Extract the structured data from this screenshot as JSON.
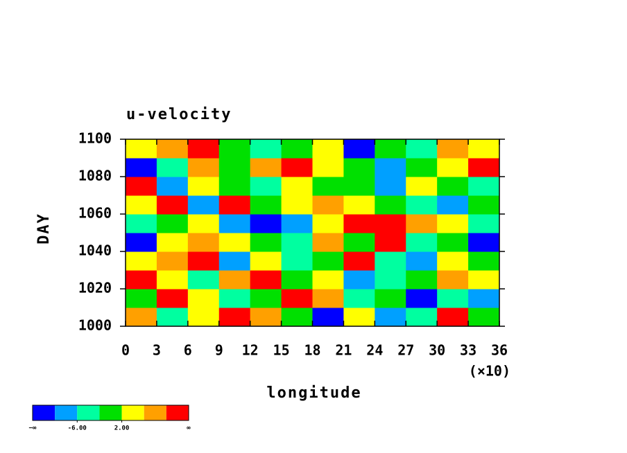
{
  "chart_data": {
    "type": "heatmap",
    "title": "u-velocity",
    "x_label": "longitude",
    "x_scale_label": "(×10)",
    "y_label": "DAY",
    "xlim": [
      0,
      36
    ],
    "xticks": [
      0,
      3,
      6,
      9,
      12,
      15,
      18,
      21,
      24,
      27,
      30,
      33,
      36
    ],
    "ylim": [
      1000,
      1100
    ],
    "yticks": [
      1000,
      1020,
      1040,
      1060,
      1080,
      1100
    ],
    "field": {
      "x_edges": [
        0,
        3,
        6,
        9,
        12,
        15,
        18,
        21,
        24,
        27,
        30,
        33,
        36
      ],
      "y_edges": [
        1000,
        1010,
        1020,
        1030,
        1040,
        1050,
        1060,
        1070,
        1080,
        1090,
        1100
      ],
      "values": [
        [
          8,
          -4,
          4,
          12,
          8,
          0,
          -12,
          4,
          -8,
          -4,
          12,
          0
        ],
        [
          0,
          12,
          4,
          -4,
          0,
          12,
          8,
          -4,
          0,
          -12,
          -4,
          -8
        ],
        [
          12,
          4,
          -4,
          8,
          12,
          0,
          4,
          -8,
          -4,
          0,
          8,
          4
        ],
        [
          4,
          8,
          12,
          -8,
          4,
          -4,
          0,
          12,
          -4,
          -8,
          4,
          0
        ],
        [
          -12,
          4,
          8,
          4,
          0,
          -4,
          8,
          0,
          12,
          -4,
          0,
          -12
        ],
        [
          -4,
          0,
          4,
          -8,
          -12,
          -8,
          4,
          12,
          12,
          8,
          4,
          -4
        ],
        [
          4,
          12,
          -8,
          12,
          0,
          4,
          8,
          4,
          0,
          -4,
          -8,
          0
        ],
        [
          12,
          -8,
          4,
          0,
          -4,
          4,
          0,
          0,
          -8,
          4,
          0,
          -4
        ],
        [
          -12,
          -4,
          8,
          0,
          8,
          12,
          4,
          0,
          -8,
          0,
          4,
          12
        ],
        [
          4,
          8,
          12,
          0,
          -4,
          0,
          4,
          -12,
          0,
          -4,
          8,
          4
        ]
      ]
    },
    "colorbar": {
      "colors": [
        "#0000ff",
        "#00a0ff",
        "#00ffa0",
        "#00e000",
        "#ffff00",
        "#ffa000",
        "#ff0000"
      ],
      "levels": [
        -10,
        -6,
        -2,
        2,
        6,
        10
      ],
      "min_label": "−∞",
      "max_label": "∞",
      "ticks": [
        {
          "value": -6,
          "label": "-6.00"
        },
        {
          "value": 2,
          "label": "2.00"
        }
      ]
    }
  }
}
